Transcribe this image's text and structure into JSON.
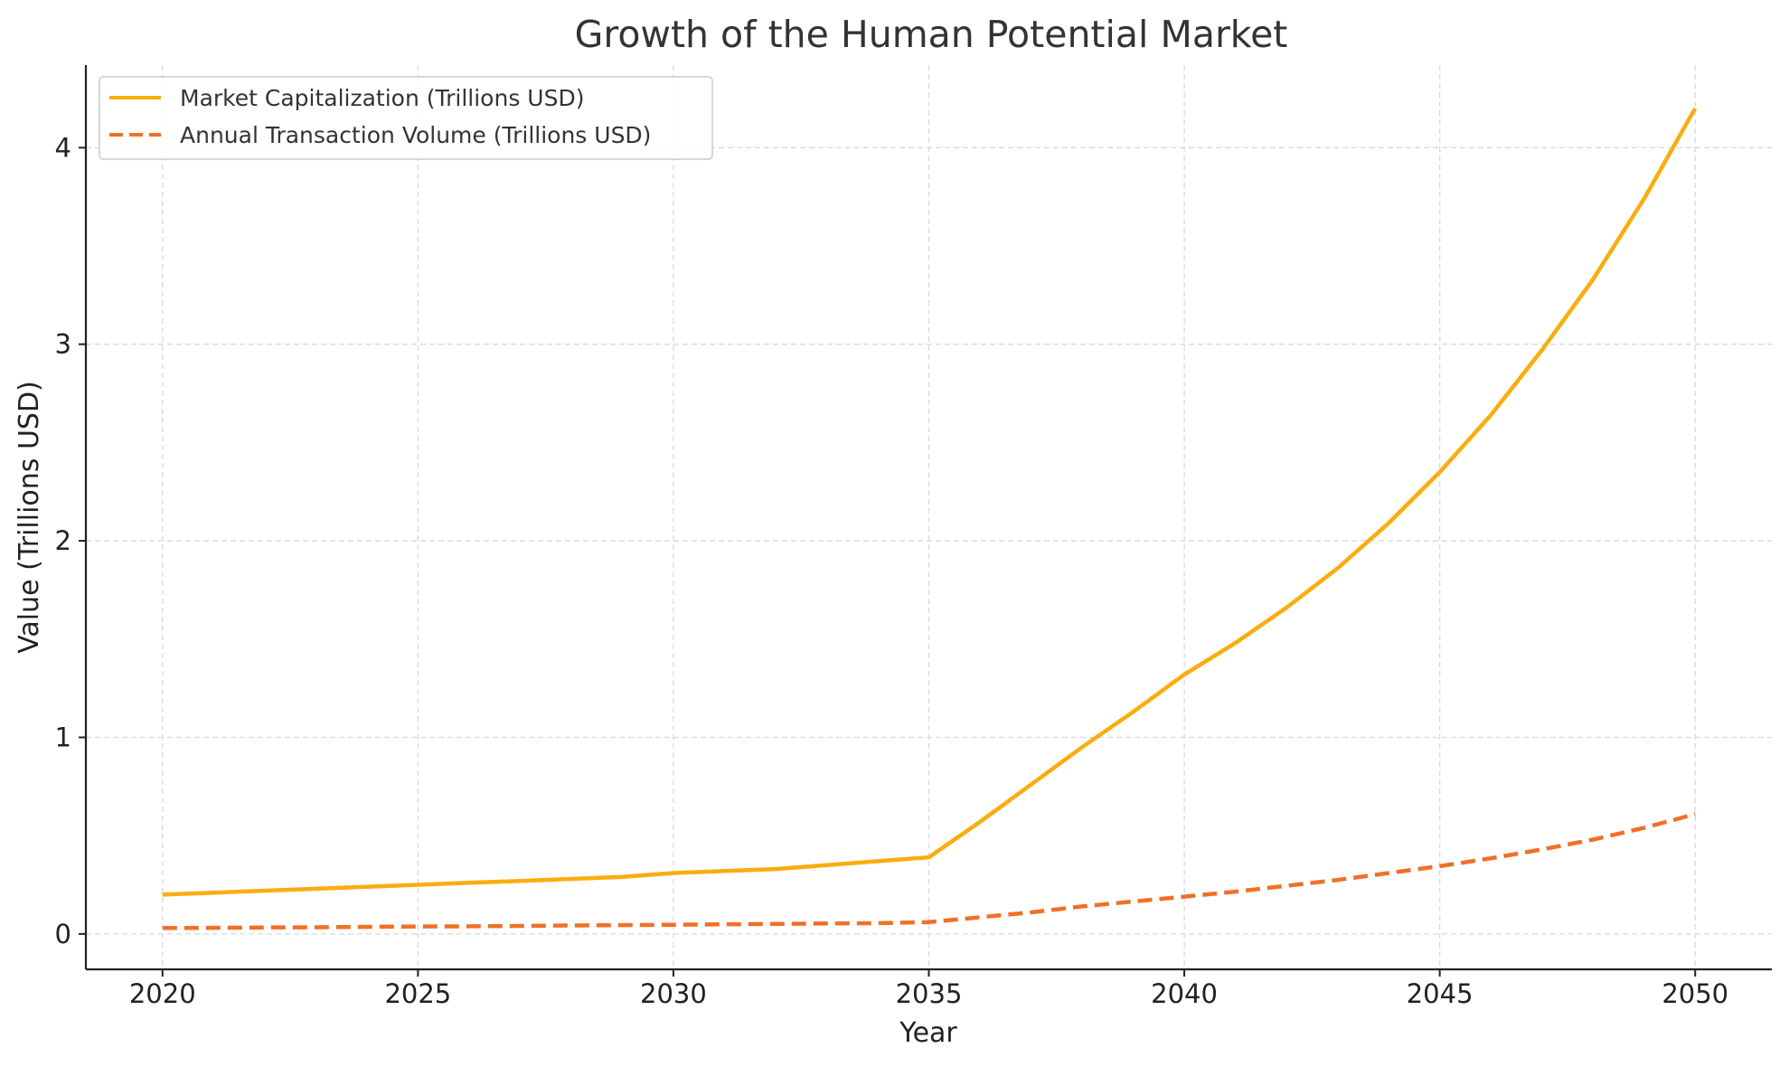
{
  "chart_data": {
    "type": "line",
    "title": "Growth of the Human Potential Market",
    "xlabel": "Year",
    "ylabel": "Value (Trillions USD)",
    "xlim": [
      2018.5,
      2051.5
    ],
    "ylim": [
      -0.18,
      4.42
    ],
    "xticks": [
      2020,
      2025,
      2030,
      2035,
      2040,
      2045,
      2050
    ],
    "yticks": [
      0,
      1,
      2,
      3,
      4
    ],
    "grid": true,
    "legend_position": "top-left",
    "x": [
      2020,
      2021,
      2022,
      2023,
      2024,
      2025,
      2026,
      2027,
      2028,
      2029,
      2030,
      2031,
      2032,
      2033,
      2034,
      2035,
      2036,
      2037,
      2038,
      2039,
      2040,
      2041,
      2042,
      2043,
      2044,
      2045,
      2046,
      2047,
      2048,
      2049,
      2050
    ],
    "series": [
      {
        "name": "Market Capitalization (Trillions USD)",
        "color": "#f9ad0e",
        "style": "solid",
        "values": [
          0.2,
          0.21,
          0.22,
          0.23,
          0.24,
          0.25,
          0.26,
          0.27,
          0.28,
          0.29,
          0.31,
          0.32,
          0.33,
          0.35,
          0.37,
          0.39,
          0.57,
          0.76,
          0.95,
          1.13,
          1.32,
          1.48,
          1.66,
          1.86,
          2.09,
          2.35,
          2.64,
          2.97,
          3.33,
          3.74,
          4.2
        ]
      },
      {
        "name": "Annual Transaction Volume (Trillions USD)",
        "color": "#f07026",
        "style": "dashed",
        "values": [
          0.03,
          0.031,
          0.033,
          0.034,
          0.036,
          0.038,
          0.039,
          0.041,
          0.043,
          0.045,
          0.047,
          0.049,
          0.051,
          0.053,
          0.055,
          0.06,
          0.085,
          0.11,
          0.14,
          0.165,
          0.19,
          0.215,
          0.245,
          0.275,
          0.31,
          0.345,
          0.385,
          0.43,
          0.48,
          0.54,
          0.61
        ]
      }
    ]
  }
}
